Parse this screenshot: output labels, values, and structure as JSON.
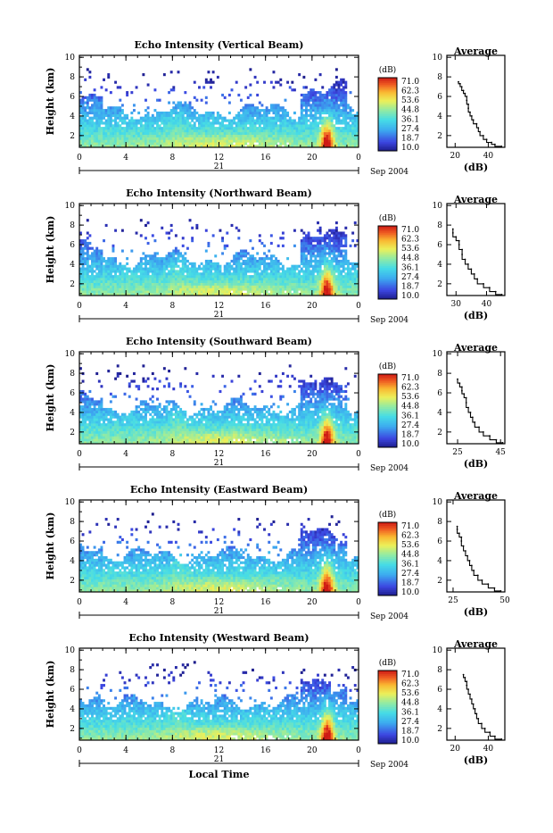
{
  "chart_data": [
    {
      "type": "heatmap",
      "title": "Echo Intensity (Vertical Beam)",
      "xlabel": "",
      "ylabel": "Height (km)",
      "x_ticks": [
        "0",
        "4",
        "8",
        "12",
        "16",
        "20",
        "0"
      ],
      "y_ticks": [
        "2",
        "4",
        "6",
        "8",
        "10"
      ],
      "xlim": [
        0,
        24
      ],
      "ylim": [
        0.8,
        10.2
      ],
      "date_day": "21",
      "date_label": "Sep 2004",
      "colorbar": {
        "unit": "(dB)",
        "ticks": [
          "71.0",
          "62.3",
          "53.6",
          "44.8",
          "36.1",
          "27.4",
          "18.7",
          "10.0"
        ],
        "range": [
          10.0,
          71.0
        ]
      },
      "profile": {
        "title": "Average",
        "xlabel": "(dB)",
        "x_ticks": [
          20,
          40
        ],
        "xlim": [
          15,
          50
        ],
        "y_ticks": [
          "2",
          "4",
          "6",
          "8",
          "10"
        ],
        "points": [
          [
            48,
            0.9
          ],
          [
            44,
            1.1
          ],
          [
            42,
            1.3
          ],
          [
            39,
            1.6
          ],
          [
            37,
            2.0
          ],
          [
            35,
            2.4
          ],
          [
            34,
            2.8
          ],
          [
            33,
            3.2
          ],
          [
            31,
            3.6
          ],
          [
            30,
            4.0
          ],
          [
            29,
            4.4
          ],
          [
            28,
            4.8
          ],
          [
            28,
            5.2
          ],
          [
            27,
            5.6
          ],
          [
            27,
            6.0
          ],
          [
            26,
            6.3
          ],
          [
            25,
            6.6
          ],
          [
            24,
            7.0
          ],
          [
            23,
            7.3
          ],
          [
            22,
            7.5
          ]
        ]
      }
    },
    {
      "type": "heatmap",
      "title": "Echo Intensity (Northward Beam)",
      "xlabel": "",
      "ylabel": "Height (km)",
      "x_ticks": [
        "0",
        "4",
        "8",
        "12",
        "16",
        "20",
        "0"
      ],
      "y_ticks": [
        "2",
        "4",
        "6",
        "8",
        "10"
      ],
      "xlim": [
        0,
        24
      ],
      "ylim": [
        0.8,
        10.2
      ],
      "date_day": "21",
      "date_label": "Sep 2004",
      "colorbar": {
        "unit": "(dB)",
        "ticks": [
          "71.0",
          "62.3",
          "53.6",
          "44.8",
          "36.1",
          "27.4",
          "18.7",
          "10.0"
        ],
        "range": [
          10.0,
          71.0
        ]
      },
      "profile": {
        "title": "Average",
        "xlabel": "(dB)",
        "x_ticks": [
          30,
          40
        ],
        "xlim": [
          27,
          46
        ],
        "y_ticks": [
          "2",
          "4",
          "6",
          "8",
          "10"
        ],
        "points": [
          [
            45,
            0.9
          ],
          [
            43,
            1.2
          ],
          [
            41,
            1.6
          ],
          [
            39,
            2.0
          ],
          [
            37,
            2.5
          ],
          [
            36,
            3.0
          ],
          [
            35,
            3.5
          ],
          [
            34,
            4.0
          ],
          [
            33,
            4.5
          ],
          [
            32,
            5.0
          ],
          [
            32,
            5.5
          ],
          [
            31,
            6.0
          ],
          [
            31,
            6.4
          ],
          [
            30,
            6.8
          ],
          [
            29,
            7.2
          ],
          [
            29,
            7.6
          ]
        ]
      }
    },
    {
      "type": "heatmap",
      "title": "Echo Intensity (Southward Beam)",
      "xlabel": "",
      "ylabel": "Height (km)",
      "x_ticks": [
        "0",
        "4",
        "8",
        "12",
        "16",
        "20",
        "0"
      ],
      "y_ticks": [
        "2",
        "4",
        "6",
        "8",
        "10"
      ],
      "xlim": [
        0,
        24
      ],
      "ylim": [
        0.8,
        10.2
      ],
      "date_day": "21",
      "date_label": "Sep 2004",
      "colorbar": {
        "unit": "(dB)",
        "ticks": [
          "71.0",
          "62.3",
          "53.6",
          "44.8",
          "36.1",
          "27.4",
          "18.7",
          "10.0"
        ],
        "range": [
          10.0,
          71.0
        ]
      },
      "profile": {
        "title": "Average",
        "xlabel": "(dB)",
        "x_ticks": [
          25,
          45
        ],
        "xlim": [
          20,
          47
        ],
        "y_ticks": [
          "2",
          "4",
          "6",
          "8",
          "10"
        ],
        "points": [
          [
            46,
            0.9
          ],
          [
            43,
            1.2
          ],
          [
            40,
            1.6
          ],
          [
            37,
            2.0
          ],
          [
            35,
            2.5
          ],
          [
            33,
            3.0
          ],
          [
            32,
            3.5
          ],
          [
            31,
            4.0
          ],
          [
            30,
            4.5
          ],
          [
            29,
            5.0
          ],
          [
            29,
            5.5
          ],
          [
            28,
            5.9
          ],
          [
            27,
            6.2
          ],
          [
            27,
            6.6
          ],
          [
            26,
            7.0
          ],
          [
            25,
            7.4
          ]
        ]
      }
    },
    {
      "type": "heatmap",
      "title": "Echo Intensity (Eastward Beam)",
      "xlabel": "",
      "ylabel": "Height (km)",
      "x_ticks": [
        "0",
        "4",
        "8",
        "12",
        "16",
        "20",
        "0"
      ],
      "y_ticks": [
        "2",
        "4",
        "6",
        "8",
        "10"
      ],
      "xlim": [
        0,
        24
      ],
      "ylim": [
        0.8,
        10.2
      ],
      "date_day": "21",
      "date_label": "Sep 2004",
      "colorbar": {
        "unit": "(dB)",
        "ticks": [
          "71.0",
          "62.3",
          "53.6",
          "44.8",
          "36.1",
          "27.4",
          "18.7",
          "10.0"
        ],
        "range": [
          10.0,
          71.0
        ]
      },
      "profile": {
        "title": "Average",
        "xlabel": "(dB)",
        "x_ticks": [
          25,
          50
        ],
        "xlim": [
          22,
          50
        ],
        "y_ticks": [
          "2",
          "4",
          "6",
          "8",
          "10"
        ],
        "points": [
          [
            48,
            0.9
          ],
          [
            45,
            1.2
          ],
          [
            42,
            1.6
          ],
          [
            39,
            2.0
          ],
          [
            37,
            2.5
          ],
          [
            35,
            3.0
          ],
          [
            34,
            3.5
          ],
          [
            33,
            4.0
          ],
          [
            32,
            4.5
          ],
          [
            31,
            5.0
          ],
          [
            30,
            5.5
          ],
          [
            29,
            6.0
          ],
          [
            29,
            6.4
          ],
          [
            28,
            6.8
          ],
          [
            27,
            7.2
          ],
          [
            27,
            7.5
          ]
        ]
      }
    },
    {
      "type": "heatmap",
      "title": "Echo Intensity (Westward Beam)",
      "xlabel": "Local Time",
      "ylabel": "Height (km)",
      "x_ticks": [
        "0",
        "4",
        "8",
        "12",
        "16",
        "20",
        "0"
      ],
      "y_ticks": [
        "2",
        "4",
        "6",
        "8",
        "10"
      ],
      "xlim": [
        0,
        24
      ],
      "ylim": [
        0.8,
        10.2
      ],
      "date_day": "21",
      "date_label": "Sep 2004",
      "colorbar": {
        "unit": "(dB)",
        "ticks": [
          "71.0",
          "62.3",
          "53.6",
          "44.8",
          "36.1",
          "27.4",
          "18.7",
          "10.0"
        ],
        "range": [
          10.0,
          71.0
        ]
      },
      "profile": {
        "title": "Average",
        "xlabel": "(dB)",
        "x_ticks": [
          20,
          40
        ],
        "xlim": [
          15,
          50
        ],
        "y_ticks": [
          "2",
          "4",
          "6",
          "8",
          "10"
        ],
        "points": [
          [
            48,
            0.9
          ],
          [
            44,
            1.2
          ],
          [
            41,
            1.6
          ],
          [
            38,
            2.0
          ],
          [
            36,
            2.5
          ],
          [
            34,
            3.0
          ],
          [
            33,
            3.5
          ],
          [
            32,
            4.0
          ],
          [
            31,
            4.5
          ],
          [
            30,
            5.0
          ],
          [
            29,
            5.5
          ],
          [
            28,
            6.0
          ],
          [
            27,
            6.4
          ],
          [
            27,
            6.8
          ],
          [
            26,
            7.2
          ],
          [
            25,
            7.5
          ]
        ]
      }
    }
  ]
}
